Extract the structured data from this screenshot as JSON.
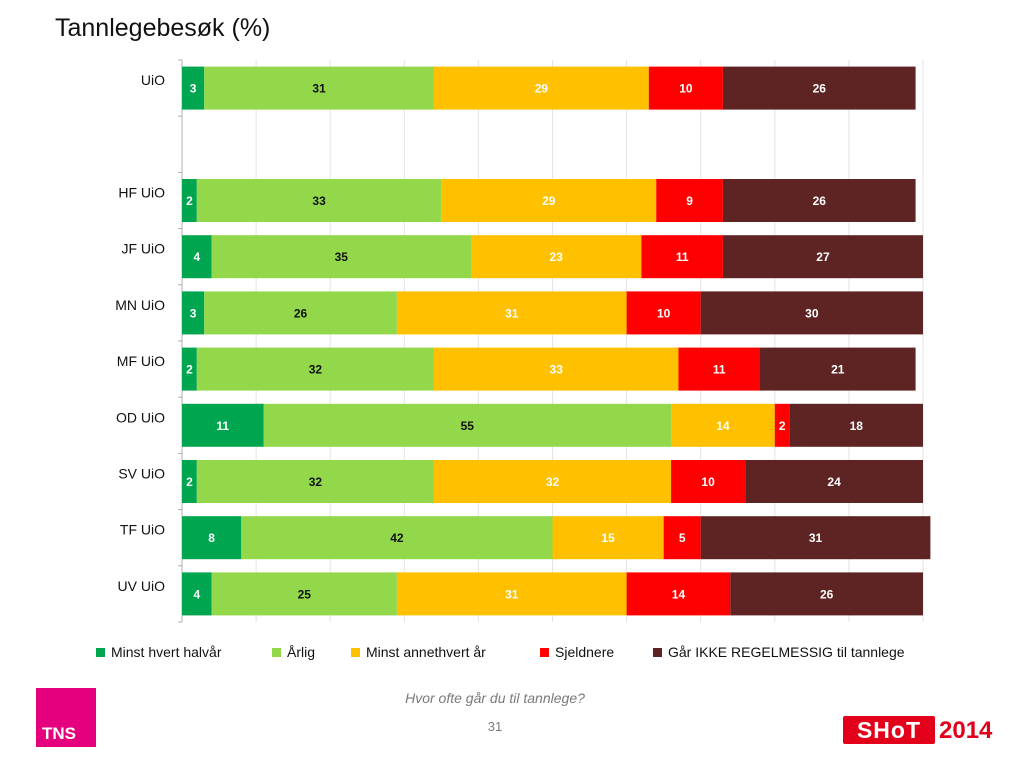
{
  "slide": {
    "title": "Tannlegebesøk (%)",
    "caption": "Hvor ofte går du til tannlege?",
    "page_number": "31"
  },
  "logos": {
    "tns": "TNS",
    "shot_main": "SHoT",
    "shot_year": "2014"
  },
  "chart_data": {
    "type": "bar",
    "orientation": "horizontal",
    "stacked": true,
    "categories": [
      "UiO",
      "",
      "HF UiO",
      "JF UiO",
      "MN UiO",
      "MF UiO",
      "OD UiO",
      "SV UiO",
      "TF UiO",
      "UV UiO"
    ],
    "series": [
      {
        "name": "Minst hvert halvår",
        "color": "#00a550",
        "values": [
          3,
          null,
          2,
          4,
          3,
          2,
          11,
          2,
          8,
          4
        ]
      },
      {
        "name": "Årlig",
        "color": "#92d84a",
        "values": [
          31,
          null,
          33,
          35,
          26,
          32,
          55,
          32,
          42,
          25
        ]
      },
      {
        "name": "Minst annethvert år",
        "color": "#ffc000",
        "values": [
          29,
          null,
          29,
          23,
          31,
          33,
          14,
          32,
          15,
          31
        ]
      },
      {
        "name": "Sjeldnere",
        "color": "#ff0000",
        "values": [
          10,
          null,
          9,
          11,
          10,
          11,
          2,
          10,
          5,
          14
        ]
      },
      {
        "name": "Går IKKE REGELMESSIG til tannlege",
        "color": "#5e2424",
        "values": [
          26,
          null,
          26,
          27,
          30,
          21,
          18,
          24,
          31,
          26
        ]
      }
    ],
    "label_colors": [
      "#ffffff",
      "#111111",
      "#ffffff",
      "#ffffff",
      "#ffffff"
    ],
    "legend_position": "bottom",
    "grid": true,
    "xlim": [
      0,
      100
    ]
  }
}
